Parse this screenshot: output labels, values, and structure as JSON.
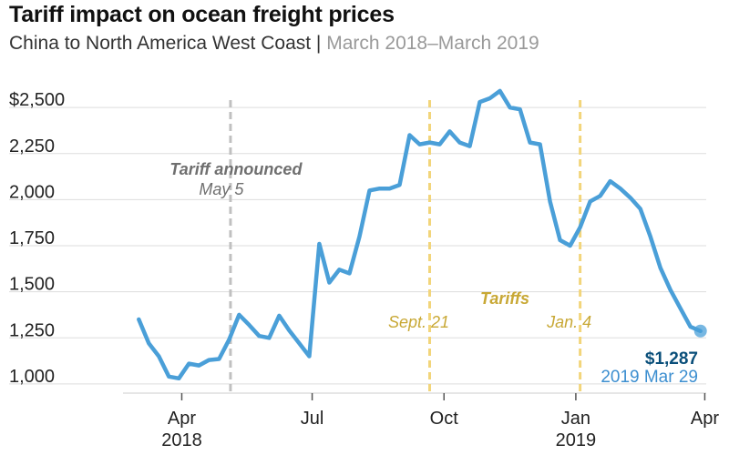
{
  "title": "Tariff impact on ocean freight prices",
  "subtitle": {
    "route": "China to North America West Coast |",
    "range": "March 2018–March 2019"
  },
  "colors": {
    "line": "#4a9fd8",
    "tariff_marker": "#f2d57a",
    "tariff_text": "#c8a835",
    "announce_marker": "#c0c0c0",
    "announce_text": "#6f6f6f",
    "grid": "#dddddd",
    "end_value": "#0a4f7a",
    "end_date": "#3d8fd0"
  },
  "chart_data": {
    "type": "line",
    "title": "Tariff impact on ocean freight prices",
    "xlabel": "",
    "ylabel": "",
    "xlim": [
      "2018-02-19",
      "2019-04-02"
    ],
    "ylim": [
      950,
      2550
    ],
    "y_ticks": [
      {
        "value": 1000,
        "label": "1,000"
      },
      {
        "value": 1250,
        "label": "1,250"
      },
      {
        "value": 1500,
        "label": "1,500"
      },
      {
        "value": 1750,
        "label": "1,750"
      },
      {
        "value": 2000,
        "label": "2,000"
      },
      {
        "value": 2250,
        "label": "2,250"
      },
      {
        "value": 2500,
        "label": "$2,500"
      }
    ],
    "x_ticks": [
      {
        "date": "2018-04-01",
        "label": "Apr",
        "sublabel": "2018"
      },
      {
        "date": "2018-07-01",
        "label": "Jul",
        "sublabel": ""
      },
      {
        "date": "2018-10-01",
        "label": "Oct",
        "sublabel": ""
      },
      {
        "date": "2019-01-01",
        "label": "Jan",
        "sublabel": "2019"
      },
      {
        "date": "2019-04-01",
        "label": "Apr",
        "sublabel": ""
      }
    ],
    "grid": true,
    "series": [
      {
        "points": [
          [
            "2018-03-02",
            1350
          ],
          [
            "2018-03-09",
            1220
          ],
          [
            "2018-03-16",
            1150
          ],
          [
            "2018-03-23",
            1040
          ],
          [
            "2018-03-30",
            1030
          ],
          [
            "2018-04-06",
            1110
          ],
          [
            "2018-04-13",
            1100
          ],
          [
            "2018-04-20",
            1130
          ],
          [
            "2018-04-27",
            1135
          ],
          [
            "2018-05-04",
            1240
          ],
          [
            "2018-05-11",
            1375
          ],
          [
            "2018-05-18",
            1320
          ],
          [
            "2018-05-25",
            1260
          ],
          [
            "2018-06-01",
            1250
          ],
          [
            "2018-06-08",
            1370
          ],
          [
            "2018-06-15",
            1290
          ],
          [
            "2018-06-22",
            1220
          ],
          [
            "2018-06-29",
            1150
          ],
          [
            "2018-07-06",
            1760
          ],
          [
            "2018-07-13",
            1550
          ],
          [
            "2018-07-20",
            1620
          ],
          [
            "2018-07-27",
            1600
          ],
          [
            "2018-08-03",
            1800
          ],
          [
            "2018-08-10",
            2050
          ],
          [
            "2018-08-17",
            2060
          ],
          [
            "2018-08-24",
            2060
          ],
          [
            "2018-08-31",
            2080
          ],
          [
            "2018-09-07",
            2350
          ],
          [
            "2018-09-14",
            2300
          ],
          [
            "2018-09-21",
            2310
          ],
          [
            "2018-09-28",
            2300
          ],
          [
            "2018-10-05",
            2370
          ],
          [
            "2018-10-12",
            2310
          ],
          [
            "2018-10-19",
            2290
          ],
          [
            "2018-10-26",
            2530
          ],
          [
            "2018-11-02",
            2550
          ],
          [
            "2018-11-09",
            2590
          ],
          [
            "2018-11-16",
            2500
          ],
          [
            "2018-11-23",
            2490
          ],
          [
            "2018-11-30",
            2310
          ],
          [
            "2018-12-07",
            2300
          ],
          [
            "2018-12-14",
            1990
          ],
          [
            "2018-12-21",
            1780
          ],
          [
            "2018-12-28",
            1750
          ],
          [
            "2019-01-04",
            1850
          ],
          [
            "2019-01-11",
            1990
          ],
          [
            "2019-01-18",
            2020
          ],
          [
            "2019-01-25",
            2100
          ],
          [
            "2019-02-01",
            2060
          ],
          [
            "2019-02-08",
            2010
          ],
          [
            "2019-02-15",
            1950
          ],
          [
            "2019-02-22",
            1800
          ],
          [
            "2019-03-01",
            1630
          ],
          [
            "2019-03-08",
            1510
          ],
          [
            "2019-03-15",
            1410
          ],
          [
            "2019-03-22",
            1310
          ],
          [
            "2019-03-29",
            1287
          ]
        ]
      }
    ],
    "markers": [
      {
        "date": "2018-05-05",
        "style": "announce",
        "label": "Tariff announced",
        "sublabel": "May 5"
      },
      {
        "date": "2018-09-21",
        "style": "tariff",
        "label": "",
        "sublabel": "Sept. 21"
      },
      {
        "date": "2019-01-04",
        "style": "tariff",
        "label": "",
        "sublabel": "Jan. 4"
      }
    ],
    "tariffs_label": "Tariffs",
    "end_point": {
      "date": "2019-03-29",
      "value": 1287,
      "value_label": "$1,287",
      "date_label": "2019 Mar 29"
    }
  }
}
